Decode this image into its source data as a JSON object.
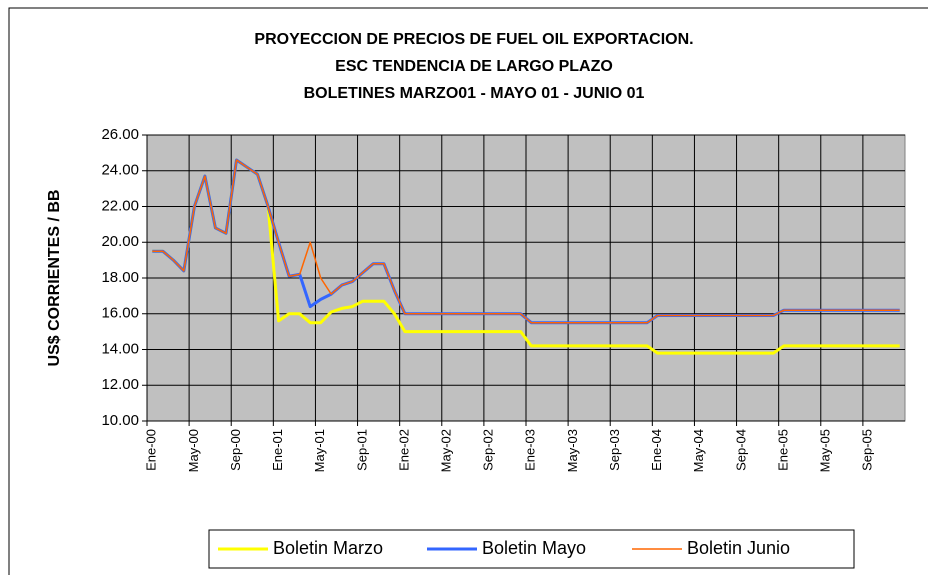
{
  "chart_data": {
    "type": "line",
    "title": [
      "PROYECCION DE PRECIOS DE FUEL OIL EXPORTACION.",
      "ESC TENDENCIA DE LARGO PLAZO",
      "BOLETINES    MARZO01 - MAYO 01 - JUNIO 01"
    ],
    "y_label": "US$ CORRIENTES / BB",
    "categories": [
      "Ene-00",
      null,
      null,
      null,
      "May-00",
      null,
      null,
      null,
      "Sep-00",
      null,
      null,
      null,
      "Ene-01",
      null,
      null,
      null,
      "May-01",
      null,
      null,
      null,
      "Sep-01",
      null,
      null,
      null,
      "Ene-02",
      null,
      null,
      null,
      "May-02",
      null,
      null,
      null,
      "Sep-02",
      null,
      null,
      null,
      "Ene-03",
      null,
      null,
      null,
      "May-03",
      null,
      null,
      null,
      "Sep-03",
      null,
      null,
      null,
      "Ene-04",
      null,
      null,
      null,
      "May-04",
      null,
      null,
      null,
      "Sep-04",
      null,
      null,
      null,
      "Ene-05",
      null,
      null,
      null,
      "May-05",
      null,
      null,
      null,
      "Sep-05",
      null,
      null,
      null
    ],
    "series": [
      {
        "name": "Boletin Marzo",
        "color": "#ffff00",
        "values": [
          19.5,
          19.5,
          19.0,
          18.4,
          22.0,
          23.7,
          20.8,
          20.5,
          24.6,
          24.2,
          23.8,
          22.0,
          15.6,
          16.0,
          16.0,
          15.5,
          15.5,
          16.1,
          16.3,
          16.4,
          16.7,
          16.7,
          16.7,
          16.0,
          15.0,
          15.0,
          15.0,
          15.0,
          15.0,
          15.0,
          15.0,
          15.0,
          15.0,
          15.0,
          15.0,
          15.0,
          14.2,
          14.2,
          14.2,
          14.2,
          14.2,
          14.2,
          14.2,
          14.2,
          14.2,
          14.2,
          14.2,
          14.2,
          13.8,
          13.8,
          13.8,
          13.8,
          13.8,
          13.8,
          13.8,
          13.8,
          13.8,
          13.8,
          13.8,
          13.8,
          14.2,
          14.2,
          14.2,
          14.2,
          14.2,
          14.2,
          14.2,
          14.2,
          14.2,
          14.2,
          14.2,
          14.2
        ]
      },
      {
        "name": "Boletin Mayo",
        "color": "#3366ff",
        "values": [
          19.5,
          19.5,
          19.0,
          18.4,
          22.0,
          23.7,
          20.8,
          20.5,
          24.6,
          24.2,
          23.8,
          22.0,
          20.0,
          18.1,
          18.2,
          16.4,
          16.8,
          17.1,
          17.6,
          17.8,
          18.3,
          18.8,
          18.8,
          17.3,
          16.0,
          16.0,
          16.0,
          16.0,
          16.0,
          16.0,
          16.0,
          16.0,
          16.0,
          16.0,
          16.0,
          16.0,
          15.5,
          15.5,
          15.5,
          15.5,
          15.5,
          15.5,
          15.5,
          15.5,
          15.5,
          15.5,
          15.5,
          15.5,
          15.9,
          15.9,
          15.9,
          15.9,
          15.9,
          15.9,
          15.9,
          15.9,
          15.9,
          15.9,
          15.9,
          15.9,
          16.2,
          16.2,
          16.2,
          16.2,
          16.2,
          16.2,
          16.2,
          16.2,
          16.2,
          16.2,
          16.2,
          16.2
        ]
      },
      {
        "name": "Boletin Junio",
        "color": "#ff6600",
        "values": [
          19.5,
          19.5,
          19.0,
          18.4,
          22.0,
          23.7,
          20.8,
          20.5,
          24.6,
          24.2,
          23.8,
          22.0,
          20.0,
          18.1,
          18.2,
          20.0,
          18.0,
          17.1,
          17.6,
          17.8,
          18.3,
          18.8,
          18.8,
          17.3,
          16.0,
          16.0,
          16.0,
          16.0,
          16.0,
          16.0,
          16.0,
          16.0,
          16.0,
          16.0,
          16.0,
          16.0,
          15.5,
          15.5,
          15.5,
          15.5,
          15.5,
          15.5,
          15.5,
          15.5,
          15.5,
          15.5,
          15.5,
          15.5,
          15.9,
          15.9,
          15.9,
          15.9,
          15.9,
          15.9,
          15.9,
          15.9,
          15.9,
          15.9,
          15.9,
          15.9,
          16.2,
          16.2,
          16.2,
          16.2,
          16.2,
          16.2,
          16.2,
          16.2,
          16.2,
          16.2,
          16.2,
          16.2
        ]
      }
    ],
    "ylim": [
      10,
      26
    ],
    "yticks": [
      {
        "value": 10,
        "label": "10.00"
      },
      {
        "value": 12,
        "label": "12.00"
      },
      {
        "value": 14,
        "label": "14.00"
      },
      {
        "value": 16,
        "label": "16.00"
      },
      {
        "value": 18,
        "label": "18.00"
      },
      {
        "value": 20,
        "label": "20.00"
      },
      {
        "value": 22,
        "label": "22.00"
      },
      {
        "value": 24,
        "label": "24.00"
      },
      {
        "value": 26,
        "label": "26.00"
      }
    ],
    "grid": true,
    "legend": "bottom"
  }
}
